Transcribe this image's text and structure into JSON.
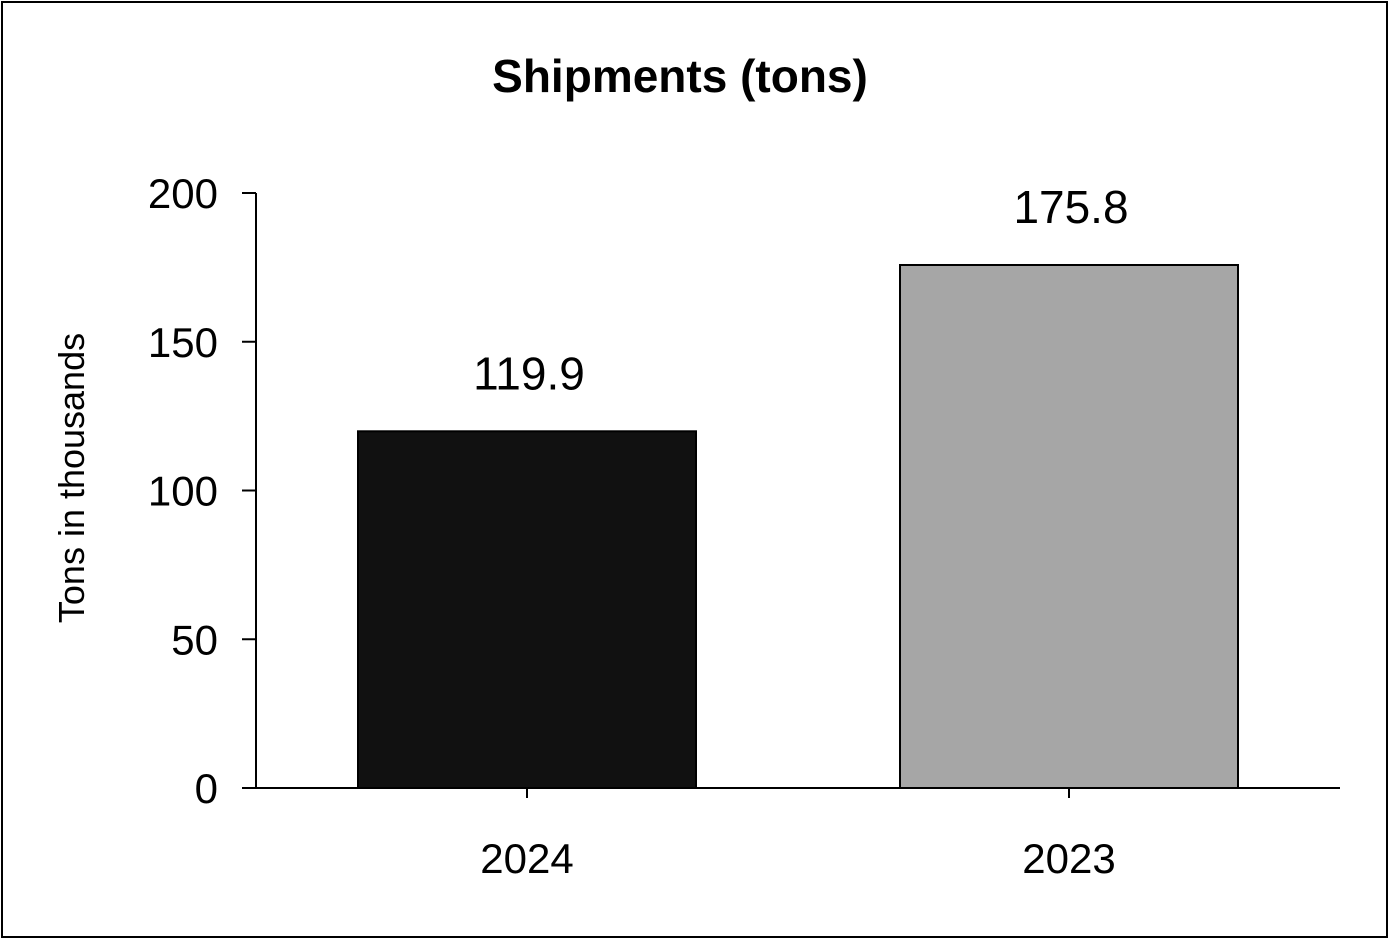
{
  "chart_data": {
    "type": "bar",
    "title": "Shipments (tons)",
    "xlabel": "",
    "ylabel": "Tons in thousands",
    "categories": [
      "2024",
      "2023"
    ],
    "values": [
      119.9,
      175.8
    ],
    "data_labels": [
      "119.9",
      "175.8"
    ],
    "bar_colors": [
      "#111111",
      "#a6a6a6"
    ],
    "ylim": [
      0,
      200
    ],
    "yticks": [
      0,
      50,
      100,
      150,
      200
    ],
    "grid": false,
    "legend": "none"
  }
}
